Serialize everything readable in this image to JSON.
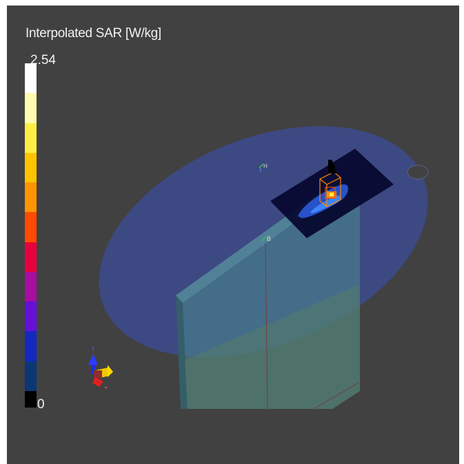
{
  "colorbar": {
    "title": "Interpolated SAR [W/kg]",
    "max_label": "2.54",
    "min_label": "0",
    "max_value": 2.54,
    "min_value": 0,
    "colors_top_to_bottom": [
      "#ffffff",
      "#fffcb0",
      "#ffee44",
      "#ffc400",
      "#ff9400",
      "#ff4a00",
      "#e8003c",
      "#a80ca0",
      "#6410d8",
      "#1428c0",
      "#0a3874",
      "#000000"
    ]
  },
  "scene": {
    "labels": {
      "probe_h": "H",
      "probe_b": "B"
    },
    "colors": {
      "background": "#414141",
      "ellipse": "#3d4a86",
      "slab": "#4e8a95",
      "plate": "#070a30",
      "device_outline": "#ff8a00"
    }
  }
}
